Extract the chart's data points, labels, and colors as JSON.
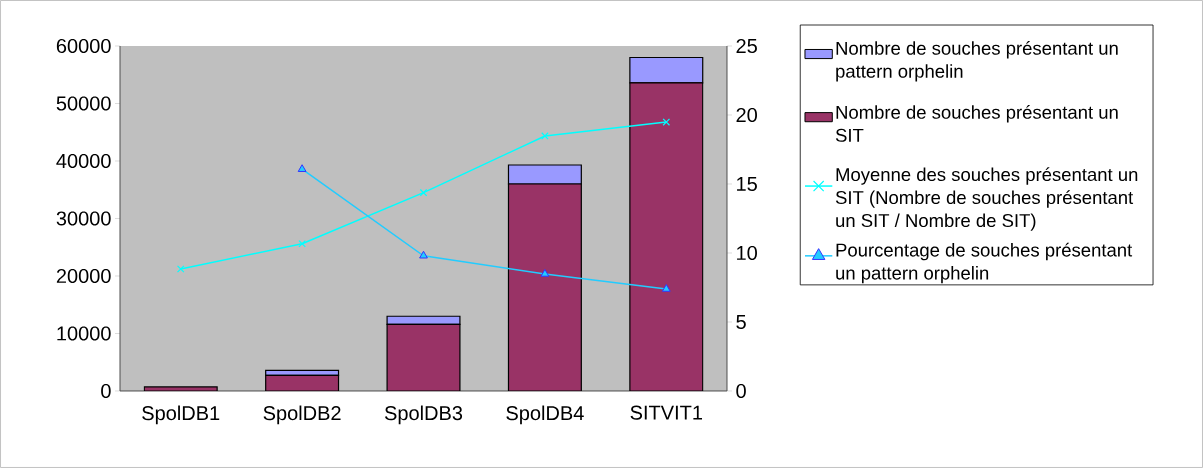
{
  "chart_data": {
    "type": "bar",
    "stacked": true,
    "categories": [
      "SpolDB1",
      "SpolDB2",
      "SpolDB3",
      "SpolDB4",
      "SITVIT1"
    ],
    "series": [
      {
        "name": "Nombre de souches présentant un SIT",
        "color": "#993366",
        "values": [
          700,
          2700,
          11600,
          36000,
          53600
        ]
      },
      {
        "name": "Nombre de souches présentant un pattern orphelin",
        "color": "#9999ff",
        "values": [
          null,
          900,
          1400,
          3300,
          4400
        ]
      },
      {
        "name": "Moyenne des souches présentant un SIT (Nombre de souches présentant un SIT / Nombre de SIT)",
        "type": "line",
        "axis": "y2",
        "marker": "cross",
        "color": "#00ffff",
        "values": [
          8.84,
          10.67,
          14.37,
          18.48,
          19.49
        ]
      },
      {
        "name": "Pourcentage de souches présentant un pattern orphelin",
        "type": "line",
        "axis": "y2",
        "marker": "triangle",
        "color": "#22ccff",
        "values": [
          null,
          16.07,
          9.8,
          8.48,
          7.39
        ]
      }
    ],
    "ylim": [
      0,
      60000
    ],
    "yticks": [
      0,
      10000,
      20000,
      30000,
      40000,
      50000,
      60000
    ],
    "y2lim": [
      0,
      25
    ],
    "y2ticks": [
      0,
      5,
      10,
      15,
      20,
      25
    ],
    "grid": false,
    "legend": "right"
  }
}
